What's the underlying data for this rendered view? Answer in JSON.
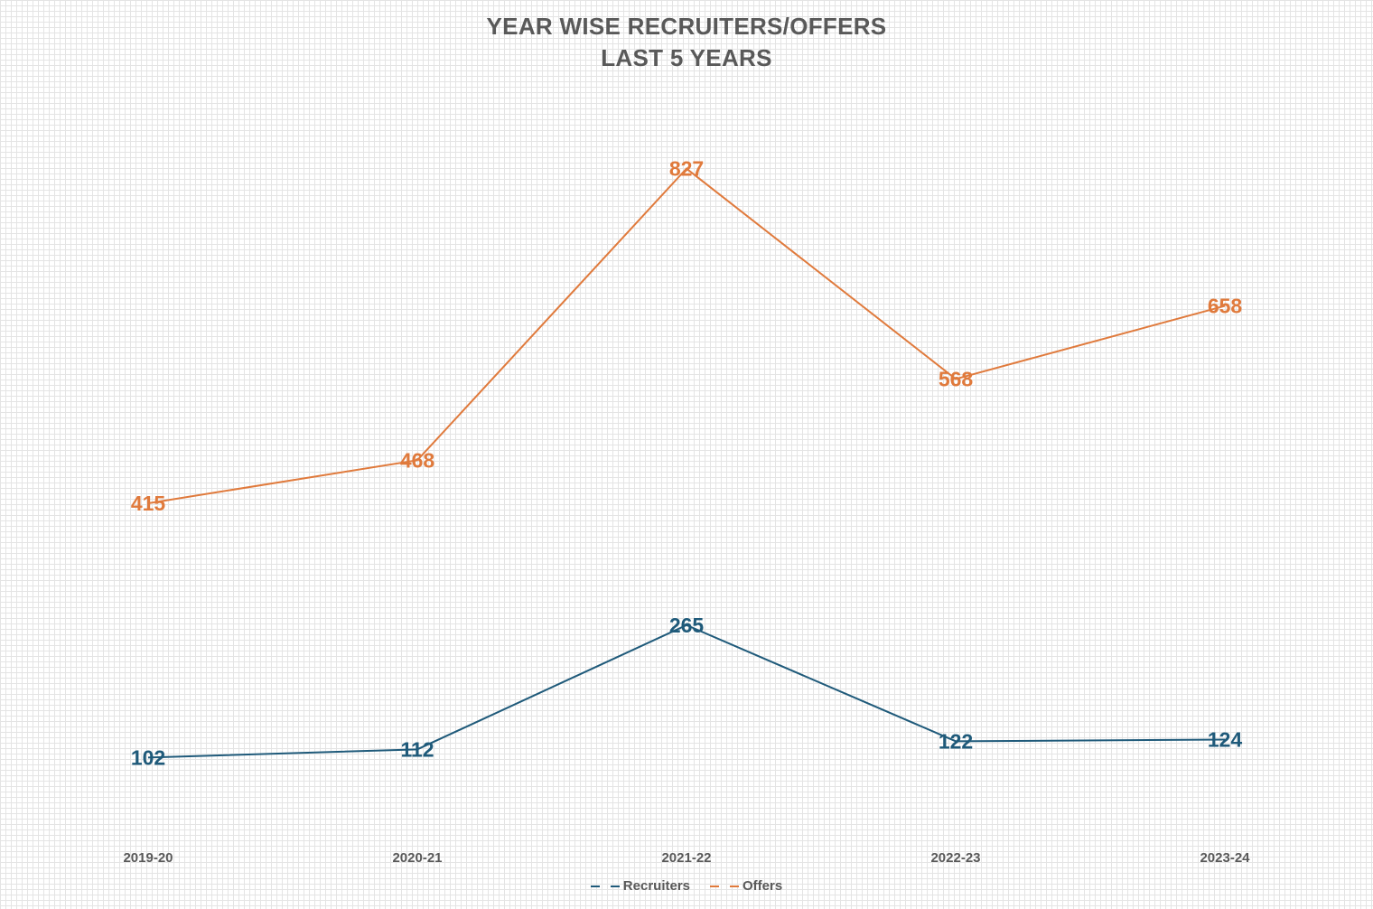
{
  "chart_data": {
    "type": "line",
    "title": "YEAR WISE RECRUITERS/OFFERS",
    "subtitle": "LAST 5 YEARS",
    "categories": [
      "2019-20",
      "2020-21",
      "2021-22",
      "2022-23",
      "2023-24"
    ],
    "series": [
      {
        "name": "Recruiters",
        "values": [
          102,
          112,
          265,
          122,
          124
        ],
        "color": "#1f5a7a"
      },
      {
        "name": "Offers",
        "values": [
          415,
          468,
          827,
          568,
          658
        ],
        "color": "#e07a3c"
      }
    ],
    "xlabel": "",
    "ylabel": "",
    "ylim": [
      0,
      900
    ],
    "grid": false,
    "legend_position": "bottom"
  }
}
